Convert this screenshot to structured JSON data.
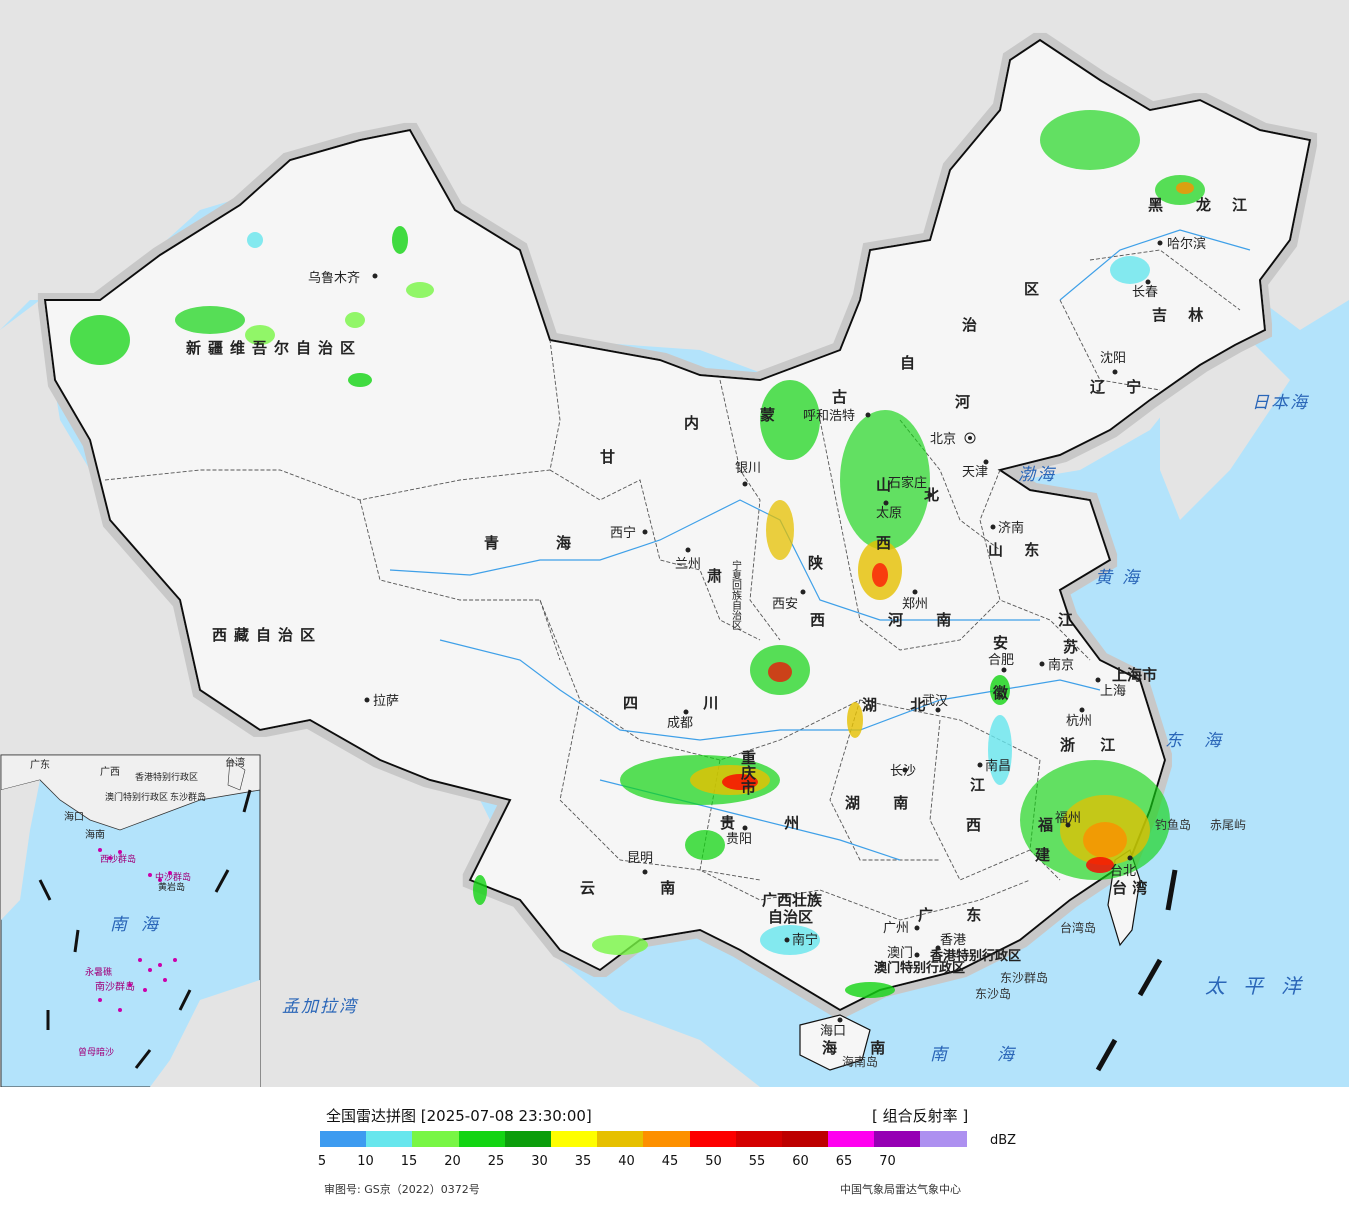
{
  "legend": {
    "title": "全国雷达拼图 [2025-07-08 23:30:00]",
    "product": "[ 组合反射率 ]",
    "unit": "dBZ",
    "scale_colors": [
      "#3d9bf0",
      "#67e6ed",
      "#78f645",
      "#13d413",
      "#0b9d0b",
      "#fefe00",
      "#e6c000",
      "#fd9000",
      "#fd0000",
      "#d40000",
      "#bd0000",
      "#ff00f0",
      "#9600b4",
      "#ad90f0"
    ],
    "tick_labels": [
      "5",
      "10",
      "15",
      "20",
      "25",
      "30",
      "35",
      "40",
      "45",
      "50",
      "55",
      "60",
      "65",
      "70"
    ],
    "approval": "审图号: GS京（2022）0372号",
    "source": "中国气象局雷达气象中心"
  },
  "provinces": {
    "xinjiang": "新疆维吾尔自治区",
    "xizang": "西藏自治区",
    "qinghai_1": "青",
    "qinghai_2": "海",
    "gansu": "甘",
    "gansu_su": "肃",
    "neimenggu": [
      "内",
      "蒙",
      "古",
      "自",
      "治",
      "区"
    ],
    "heilongjiang": [
      "黑",
      "龙",
      "江"
    ],
    "jilin": "吉 林",
    "liaoning": "辽 宁",
    "hebei_he": "河",
    "hebei_bei": "北",
    "shanxi_shan": "山",
    "shanxi_xi": "西",
    "shaanxi_1": "陕",
    "shaanxi_2": "西",
    "shandong": "山 东",
    "henan": "河 南",
    "jiangsu_1": "江",
    "jiangsu_2": "苏",
    "anhui_1": "安",
    "anhui_2": "徽",
    "hubei": "湖 北",
    "hunan": "湖 南",
    "sichuan": "四 川",
    "chongqing": "重庆市",
    "guizhou": "贵 州",
    "yunnan": "云 南",
    "guangxi_1": "广西壮族",
    "guangxi_2": "自治区",
    "guangdong": "广 东",
    "jiangxi_1": "江",
    "jiangxi_2": "西",
    "fujian_1": "福",
    "fujian_2": "建",
    "zhejiang": "浙 江",
    "shanghai": "上海市",
    "taiwan": "台 湾",
    "hainan": "海 南",
    "ningxia": "宁夏回族自治区",
    "hk": "香港特别行政区",
    "macau": "澳门特别行政区"
  },
  "cities": {
    "urumqi": "乌鲁木齐",
    "lhasa": "拉萨",
    "xining": "西宁",
    "lanzhou": "兰州",
    "yinchuan": "银川",
    "hohhot": "呼和浩特",
    "beijing": "北京",
    "tianjin": "天津",
    "shijiazhuang": "石家庄",
    "taiyuan": "太原",
    "jinan": "济南",
    "zhengzhou": "郑州",
    "xian": "西安",
    "harbin": "哈尔滨",
    "changchun": "长春",
    "shenyang": "沈阳",
    "nanjing": "南京",
    "hefei": "合肥",
    "shanghai": "上海",
    "hangzhou": "杭州",
    "wuhan": "武汉",
    "chengdu": "成都",
    "changsha": "长沙",
    "nanchang": "南昌",
    "fuzhou": "福州",
    "taibei": "台北",
    "guiyang": "贵阳",
    "kunming": "昆明",
    "nanning": "南宁",
    "guangzhou": "广州",
    "hongkong": "香港",
    "macao": "澳门",
    "haikou": "海口"
  },
  "seas": {
    "japan_sea": "日本海",
    "bohai": "渤海",
    "yellow_sea": "黄海",
    "east_sea": "东海",
    "pacific": "太平洋",
    "south_sea": "南海",
    "bengal": "孟加拉湾",
    "inset_south_sea": "南海"
  },
  "islands": {
    "diaoyu": "钓鱼岛",
    "chiwei": "赤尾屿",
    "taiwan_island": "台湾岛",
    "dongsha_qundao": "东沙群岛",
    "dongsha_dao": "东沙岛",
    "hainan_island": "海南岛"
  },
  "inset": {
    "labels": [
      "广东",
      "广西",
      "台湾",
      "香港特别行政区",
      "澳门特别行政区",
      "海口",
      "海南",
      "东沙群岛",
      "西沙群岛",
      "中沙群岛",
      "黄岩岛",
      "南沙群岛",
      "曾母暗沙",
      "永暑礁"
    ],
    "south_sea": "南海"
  }
}
